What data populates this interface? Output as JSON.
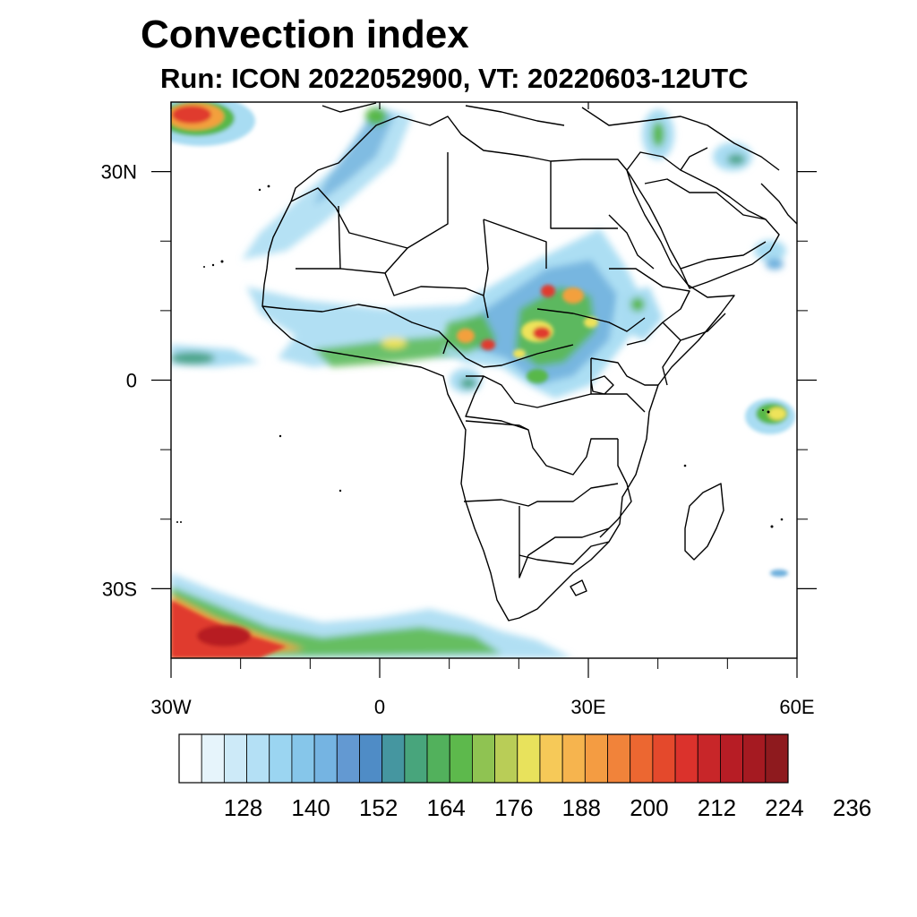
{
  "header": {
    "title": "Convection index",
    "subtitle": "Run: ICON 2022052900,  VT: 20220603-12UTC"
  },
  "map": {
    "projection": "cylindrical-equidistant",
    "lon_range": [
      -30,
      60
    ],
    "lat_range": [
      -40,
      40
    ],
    "xticks": [
      {
        "value": -30,
        "label": "30W"
      },
      {
        "value": 0,
        "label": "0"
      },
      {
        "value": 30,
        "label": "30E"
      },
      {
        "value": 60,
        "label": "60E"
      }
    ],
    "yticks": [
      {
        "value": 30,
        "label": "30N"
      },
      {
        "value": 0,
        "label": "0"
      },
      {
        "value": -30,
        "label": "30S"
      }
    ],
    "minor_xticks": [
      -20,
      -10,
      10,
      20,
      40,
      50
    ],
    "minor_yticks": [
      20,
      10,
      -10,
      -20
    ],
    "field_colors": {
      "lightblue": "#a8dcf2",
      "blue": "#6aaddc",
      "teal": "#4ca58a",
      "green": "#58b848",
      "yellow": "#eee35a",
      "orange": "#f3a03c",
      "red": "#e03a2e",
      "darkred": "#b71e24"
    }
  },
  "colorbar": {
    "colors": [
      "#ffffff",
      "#e6f4fb",
      "#cdeaf8",
      "#b4e0f5",
      "#9bd5f1",
      "#86c6ea",
      "#75b4e2",
      "#6399d2",
      "#4f8cc6",
      "#4596a0",
      "#48a57c",
      "#52b15c",
      "#5db94c",
      "#8fc352",
      "#b9cd57",
      "#e8e25c",
      "#f6c958",
      "#f6b44e",
      "#f49c42",
      "#f1833a",
      "#ec6731",
      "#e4492c",
      "#db322c",
      "#c82629",
      "#b71d25",
      "#a51a21",
      "#8e1a1e"
    ],
    "labels": [
      "128",
      "140",
      "152",
      "164",
      "176",
      "188",
      "200",
      "212",
      "224",
      "236"
    ]
  }
}
